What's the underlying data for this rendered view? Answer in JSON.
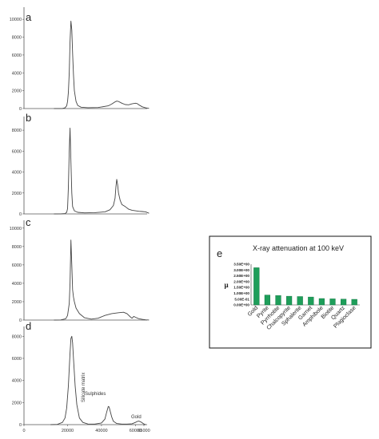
{
  "panels": [
    {
      "letter": "a"
    },
    {
      "letter": "b"
    },
    {
      "letter": "c"
    },
    {
      "letter": "d",
      "annotations": [
        "Silicate matrix",
        "Sulphides",
        "Gold"
      ]
    },
    {
      "letter": "e"
    }
  ],
  "colors": {
    "line": "#444444",
    "axis": "#555555",
    "bar": "#1e9e5a",
    "bar_edge": "#0c6e3a"
  },
  "chart_data": [
    {
      "type": "line",
      "panel": "a",
      "ylim": [
        0,
        11000
      ],
      "yticks": [
        "0",
        "2000",
        "4000",
        "6000",
        "8000",
        "10000"
      ],
      "xlim": [
        0,
        65000
      ],
      "x": [
        12000,
        15000,
        17000,
        18500,
        19500,
        20000,
        20500,
        21000,
        21500,
        22000,
        22500,
        23000,
        23500,
        24000,
        25000,
        26000,
        28000,
        32000,
        38000,
        44000,
        46000,
        48000,
        49000,
        50000,
        52000,
        54000,
        56000,
        58000,
        60000,
        61000,
        62000,
        64000,
        66000,
        68000
      ],
      "y": [
        0,
        0,
        10,
        80,
        300,
        800,
        1800,
        4000,
        7500,
        9800,
        8800,
        6200,
        3800,
        2000,
        800,
        350,
        150,
        100,
        120,
        300,
        500,
        750,
        830,
        800,
        600,
        450,
        420,
        530,
        600,
        550,
        420,
        200,
        80,
        20
      ]
    },
    {
      "type": "line",
      "panel": "b",
      "ylim": [
        0,
        9000
      ],
      "yticks": [
        "0",
        "2000",
        "4000",
        "6000",
        "8000"
      ],
      "xlim": [
        0,
        65000
      ],
      "x": [
        12000,
        16000,
        18500,
        19500,
        20000,
        20500,
        21000,
        21500,
        22000,
        22500,
        23000,
        24000,
        26000,
        30000,
        36000,
        42000,
        45000,
        47000,
        48000,
        48500,
        49000,
        49500,
        50000,
        51000,
        52000,
        54000,
        56000,
        58000,
        60000,
        62000,
        64000,
        66000,
        68000
      ],
      "y": [
        0,
        10,
        30,
        150,
        500,
        2500,
        6000,
        8200,
        5000,
        2000,
        700,
        300,
        150,
        100,
        120,
        200,
        400,
        800,
        1500,
        2600,
        3300,
        2800,
        2000,
        1300,
        900,
        700,
        450,
        350,
        300,
        250,
        230,
        200,
        60
      ]
    },
    {
      "type": "line",
      "panel": "c",
      "ylim": [
        0,
        10500
      ],
      "yticks": [
        "0",
        "2000",
        "4000",
        "6000",
        "8000",
        "10000"
      ],
      "xlim": [
        0,
        65000
      ],
      "x": [
        12000,
        16000,
        19000,
        20000,
        21000,
        21500,
        22000,
        22500,
        23000,
        23500,
        24000,
        25000,
        27000,
        30000,
        34000,
        38000,
        42000,
        46000,
        50000,
        53000,
        55000,
        57000,
        58000,
        59000,
        60000,
        62000,
        64000,
        66000,
        68000
      ],
      "y": [
        0,
        20,
        150,
        500,
        1800,
        4000,
        8700,
        6000,
        3300,
        2500,
        2000,
        1300,
        700,
        250,
        100,
        200,
        500,
        700,
        800,
        850,
        700,
        350,
        200,
        400,
        300,
        150,
        80,
        30,
        10
      ]
    },
    {
      "type": "line",
      "panel": "d",
      "ylim": [
        0,
        8600
      ],
      "yticks": [
        "0",
        "2000",
        "4000",
        "6000",
        "8000"
      ],
      "xlim": [
        0,
        65000
      ],
      "xticks": [
        "0",
        "20000",
        "40000",
        "60000",
        "65000"
      ],
      "x": [
        10000,
        14000,
        17000,
        18500,
        19500,
        20500,
        21500,
        22000,
        22500,
        23000,
        23500,
        24500,
        25500,
        27000,
        29000,
        32000,
        36000,
        40000,
        42000,
        43000,
        44000,
        44500,
        45000,
        46000,
        47000,
        49000,
        52000,
        55000,
        58000,
        60000,
        61000,
        62000,
        63000,
        64000,
        65000,
        66000
      ],
      "y": [
        0,
        20,
        200,
        600,
        1500,
        3500,
        6500,
        7800,
        8000,
        7400,
        6000,
        3500,
        1800,
        600,
        200,
        60,
        50,
        150,
        500,
        1100,
        1650,
        1600,
        1300,
        700,
        300,
        100,
        50,
        50,
        80,
        200,
        280,
        320,
        260,
        160,
        60,
        10
      ]
    },
    {
      "type": "bar",
      "panel": "e",
      "title": "X-ray attenuation at 100 keV",
      "ylabel": "μ",
      "ylim": [
        0,
        3.5
      ],
      "yticks": [
        "3.50E+00",
        "3.00E+00",
        "2.50E+00",
        "2.00E+00",
        "1.50E+00",
        "1.00E+00",
        "5.00E-01",
        "0.00E+00"
      ],
      "categories": [
        "Gold",
        "Pyrite",
        "Pyrrhotite",
        "Chalcopyrite",
        "Sphalerite",
        "Garnet",
        "Amphibole",
        "Biotite",
        "Quartz",
        "Plagioclase"
      ],
      "values": [
        3.2,
        0.85,
        0.8,
        0.75,
        0.72,
        0.68,
        0.55,
        0.52,
        0.5,
        0.48
      ]
    }
  ]
}
